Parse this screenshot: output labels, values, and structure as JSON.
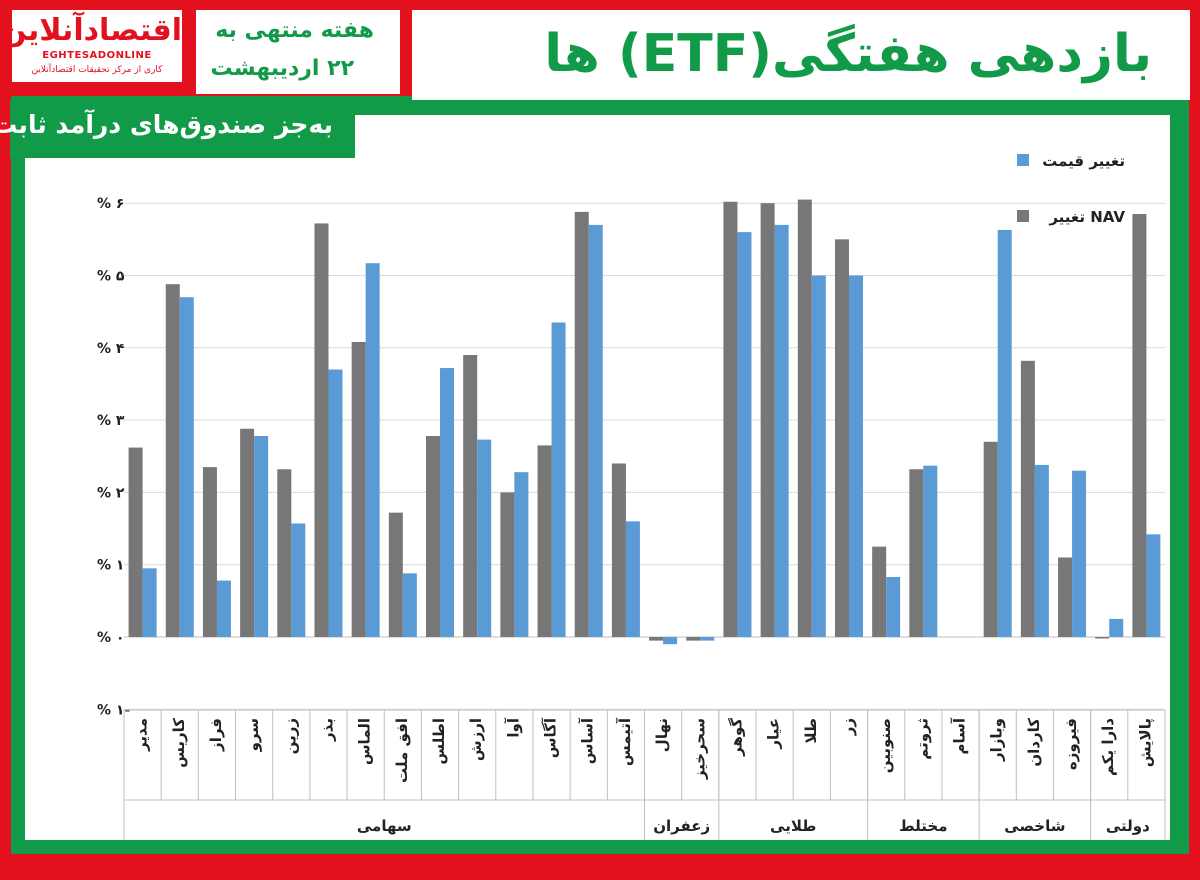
{
  "header": {
    "logo_fa": "اقتصادآنلاین",
    "logo_en": "EGHTESADONLINE",
    "logo_sub": "کاری از مرکز تحقیقات اقتصادآنلاین",
    "week_line1": "هفته منتهی به",
    "week_line2": "۲۲ اردیبهشت",
    "title": "بازدهی هفتگی(ETF) ها",
    "subtitle": "به‌جز صندوق‌های درآمد ثابت"
  },
  "colors": {
    "brand_red": "#e3101d",
    "brand_green": "#119a48",
    "nav": "#777777",
    "price": "#5b9bd5"
  },
  "chart_data": {
    "type": "bar",
    "ylim": [
      -1,
      6.5
    ],
    "yticks": [
      -1,
      0,
      1,
      2,
      3,
      4,
      5,
      6
    ],
    "ytick_labels": [
      "-۱ %",
      "۰ %",
      "۱ %",
      "۲ %",
      "۳ %",
      "۴ %",
      "۵ %",
      "۶ %"
    ],
    "grid": true,
    "legend_position": "top-right",
    "series": [
      {
        "name": "تغییر NAV",
        "color": "#777777",
        "values": [
          2.62,
          4.88,
          2.35,
          2.88,
          2.32,
          5.72,
          4.08,
          1.72,
          2.78,
          3.9,
          2.0,
          2.65,
          5.88,
          2.4,
          -0.05,
          -0.05,
          6.02,
          6.0,
          6.05,
          5.5,
          1.25,
          2.32,
          0.0,
          2.7,
          3.82,
          1.1,
          -0.02,
          5.85
        ]
      },
      {
        "name": "تغییر قیمت",
        "color": "#5b9bd5",
        "values": [
          0.95,
          4.7,
          0.78,
          2.78,
          1.57,
          3.7,
          5.17,
          0.88,
          3.72,
          2.73,
          2.28,
          4.35,
          5.7,
          1.6,
          -0.1,
          -0.05,
          5.6,
          5.7,
          5.0,
          5.0,
          0.83,
          2.37,
          0.0,
          5.63,
          2.38,
          2.3,
          0.25,
          1.42
        ]
      }
    ],
    "categories": [
      "مدیر",
      "کاریس",
      "فراز",
      "سرو",
      "زرین",
      "بذر",
      "الماس",
      "افق ملت",
      "اطلس",
      "ارزش",
      "آوا",
      "آگاس",
      "آساس",
      "آتیمس",
      "نهال",
      "سحرخیز",
      "گوهر",
      "عیار",
      "طلا",
      "زر",
      "صنوبین",
      "ثروتم",
      "آسام",
      "وبازار",
      "کاردان",
      "فیروزه",
      "دارا یکم",
      "پالایش"
    ],
    "groups": [
      {
        "name": "سهامی",
        "count": 14
      },
      {
        "name": "زعفران",
        "count": 2
      },
      {
        "name": "طلایی",
        "count": 4
      },
      {
        "name": "مختلط",
        "count": 3
      },
      {
        "name": "شاخصی",
        "count": 3
      },
      {
        "name": "دولتی",
        "count": 2
      }
    ]
  }
}
